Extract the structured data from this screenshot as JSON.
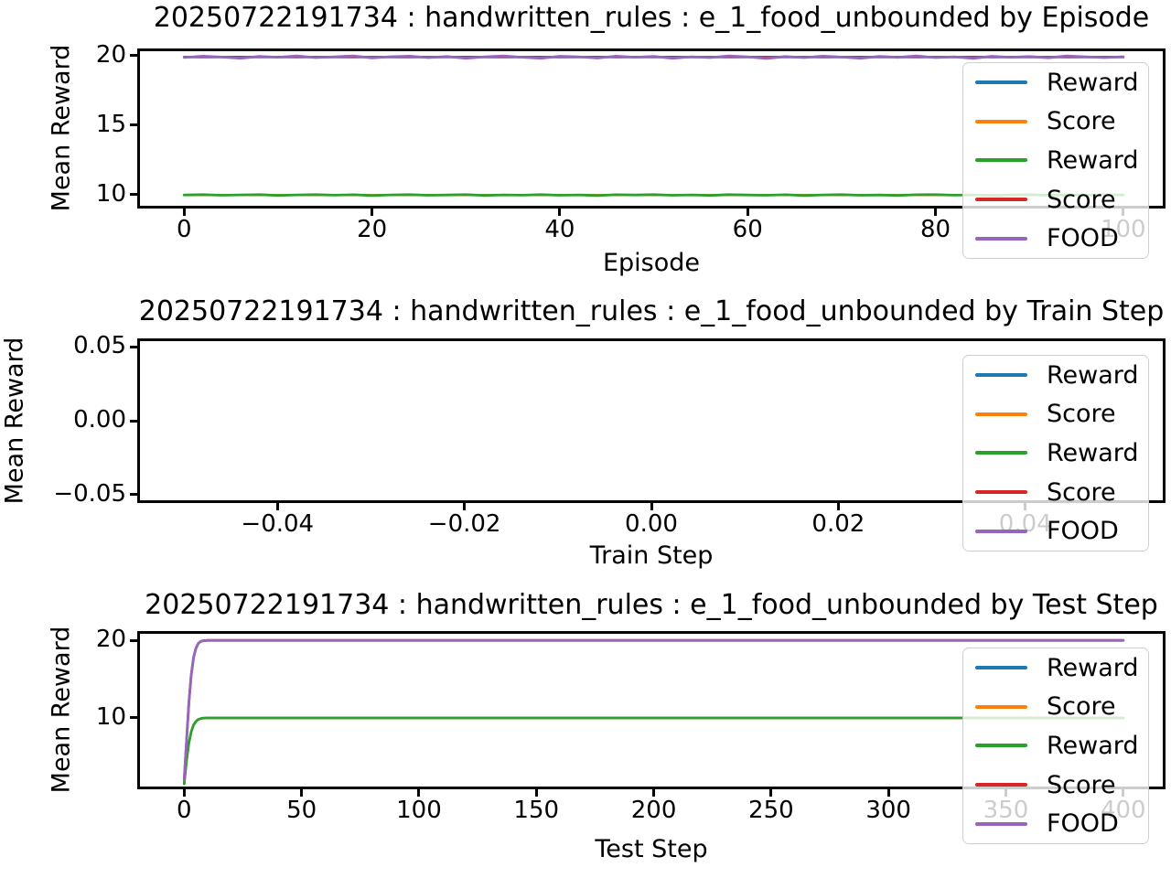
{
  "chart_data": [
    {
      "type": "line",
      "title": "20250722191734 : handwritten_rules : e_1_food_unbounded by Episode",
      "xlabel": "Episode",
      "ylabel": "Mean Reward",
      "xlim": [
        -5,
        104.5
      ],
      "ylim": [
        9.0,
        20.5
      ],
      "grid": false,
      "legend_position": "upper right",
      "xticks": [
        {
          "v": 0,
          "label": "0"
        },
        {
          "v": 20,
          "label": "20"
        },
        {
          "v": 40,
          "label": "40"
        },
        {
          "v": 60,
          "label": "60"
        },
        {
          "v": 80,
          "label": "80"
        },
        {
          "v": 100,
          "label": "100"
        }
      ],
      "yticks": [
        {
          "v": 10,
          "label": "10"
        },
        {
          "v": 15,
          "label": "15"
        },
        {
          "v": 20,
          "label": "20"
        }
      ],
      "legend": [
        {
          "label": "Reward",
          "color": "#1f77b4"
        },
        {
          "label": "Score",
          "color": "#ff7f0e"
        },
        {
          "label": "Reward",
          "color": "#2ca02c"
        },
        {
          "label": "Score",
          "color": "#d62728"
        },
        {
          "label": "FOOD",
          "color": "#9467bd"
        }
      ],
      "series": [
        {
          "name": "Reward",
          "color": "#1f77b4",
          "lw": 2.5,
          "x": [
            0,
            100
          ],
          "values": [
            9.97,
            9.97
          ]
        },
        {
          "name": "Score",
          "color": "#ff7f0e",
          "lw": 2.5,
          "x": [
            0,
            100
          ],
          "values": [
            9.97,
            9.97
          ]
        },
        {
          "name": "Reward",
          "color": "#2ca02c",
          "lw": 2.8,
          "x": [
            0,
            2,
            4,
            6,
            8,
            10,
            12,
            14,
            16,
            18,
            20,
            22,
            24,
            26,
            28,
            30,
            32,
            34,
            36,
            38,
            40,
            42,
            44,
            46,
            48,
            50,
            52,
            54,
            56,
            58,
            60,
            62,
            64,
            66,
            68,
            70,
            72,
            74,
            76,
            78,
            80,
            82,
            84,
            86,
            88,
            90,
            92,
            94,
            96,
            98,
            100
          ],
          "values": [
            9.97,
            10.0,
            9.95,
            9.98,
            10.0,
            9.94,
            9.98,
            10.0,
            9.96,
            9.99,
            9.93,
            9.98,
            10.0,
            9.95,
            9.97,
            10.0,
            9.94,
            9.98,
            9.96,
            10.0,
            9.95,
            9.98,
            9.93,
            9.99,
            9.97,
            10.0,
            9.95,
            9.98,
            9.94,
            10.0,
            9.97,
            9.95,
            9.99,
            9.93,
            9.98,
            10.0,
            9.95,
            9.97,
            9.94,
            9.99,
            10.0,
            9.96,
            9.98,
            9.93,
            9.97,
            10.0,
            9.95,
            9.98,
            9.96,
            9.99,
            9.97
          ]
        },
        {
          "name": "Score",
          "color": "#d62728",
          "lw": 2.8,
          "x": [
            0,
            100
          ],
          "values": [
            19.88,
            19.88
          ]
        },
        {
          "name": "FOOD",
          "color": "#9467bd",
          "lw": 2.8,
          "x": [
            0,
            2,
            4,
            6,
            8,
            10,
            12,
            14,
            16,
            18,
            20,
            22,
            24,
            26,
            28,
            30,
            32,
            34,
            36,
            38,
            40,
            42,
            44,
            46,
            48,
            50,
            52,
            54,
            56,
            58,
            60,
            62,
            64,
            66,
            68,
            70,
            72,
            74,
            76,
            78,
            80,
            82,
            84,
            86,
            88,
            90,
            92,
            94,
            96,
            98,
            100
          ],
          "values": [
            19.85,
            19.95,
            19.88,
            19.8,
            19.93,
            19.87,
            19.96,
            19.84,
            19.9,
            19.97,
            19.82,
            19.91,
            19.95,
            19.84,
            19.92,
            19.8,
            19.9,
            19.96,
            19.87,
            19.8,
            19.94,
            19.9,
            19.81,
            19.95,
            19.87,
            19.93,
            19.8,
            19.9,
            19.84,
            19.96,
            19.9,
            19.78,
            19.92,
            19.84,
            19.95,
            19.88,
            19.8,
            19.93,
            19.86,
            19.96,
            19.84,
            19.9,
            19.79,
            19.94,
            19.87,
            19.92,
            19.83,
            19.96,
            19.9,
            19.84,
            19.91
          ]
        }
      ]
    },
    {
      "type": "line",
      "title": "20250722191734 : handwritten_rules : e_1_food_unbounded by Train Step",
      "xlabel": "Train Step",
      "ylabel": "Mean Reward",
      "xlim": [
        -0.055,
        0.055
      ],
      "ylim": [
        -0.0556,
        0.0556
      ],
      "grid": false,
      "legend_position": "upper right",
      "xticks": [
        {
          "v": -0.04,
          "label": "−0.04"
        },
        {
          "v": -0.02,
          "label": "−0.02"
        },
        {
          "v": 0.0,
          "label": "0.00"
        },
        {
          "v": 0.02,
          "label": "0.02"
        },
        {
          "v": 0.04,
          "label": "0.04"
        }
      ],
      "yticks": [
        {
          "v": -0.05,
          "label": "−0.05"
        },
        {
          "v": 0.0,
          "label": "0.00"
        },
        {
          "v": 0.05,
          "label": "0.05"
        }
      ],
      "legend": [
        {
          "label": "Reward",
          "color": "#1f77b4"
        },
        {
          "label": "Score",
          "color": "#ff7f0e"
        },
        {
          "label": "Reward",
          "color": "#2ca02c"
        },
        {
          "label": "Score",
          "color": "#d62728"
        },
        {
          "label": "FOOD",
          "color": "#9467bd"
        }
      ],
      "series": [
        {
          "name": "Reward",
          "color": "#1f77b4",
          "lw": 2.5,
          "x": [],
          "values": []
        },
        {
          "name": "Score",
          "color": "#ff7f0e",
          "lw": 2.5,
          "x": [],
          "values": []
        },
        {
          "name": "Reward",
          "color": "#2ca02c",
          "lw": 2.5,
          "x": [],
          "values": []
        },
        {
          "name": "Score",
          "color": "#d62728",
          "lw": 2.5,
          "x": [],
          "values": []
        },
        {
          "name": "FOOD",
          "color": "#9467bd",
          "lw": 2.5,
          "x": [],
          "values": []
        }
      ]
    },
    {
      "type": "line",
      "title": "20250722191734 : handwritten_rules : e_1_food_unbounded by Test Step",
      "xlabel": "Test Step",
      "ylabel": "Mean Reward",
      "xlim": [
        -20,
        418
      ],
      "ylim": [
        0.8,
        21.2
      ],
      "grid": false,
      "legend_position": "upper right",
      "xticks": [
        {
          "v": 0,
          "label": "0"
        },
        {
          "v": 50,
          "label": "50"
        },
        {
          "v": 100,
          "label": "100"
        },
        {
          "v": 150,
          "label": "150"
        },
        {
          "v": 200,
          "label": "200"
        },
        {
          "v": 250,
          "label": "250"
        },
        {
          "v": 300,
          "label": "300"
        },
        {
          "v": 350,
          "label": "350"
        },
        {
          "v": 400,
          "label": "400"
        }
      ],
      "yticks": [
        {
          "v": 10,
          "label": "10"
        },
        {
          "v": 20,
          "label": "20"
        }
      ],
      "legend": [
        {
          "label": "Reward",
          "color": "#1f77b4"
        },
        {
          "label": "Score",
          "color": "#ff7f0e"
        },
        {
          "label": "Reward",
          "color": "#2ca02c"
        },
        {
          "label": "Score",
          "color": "#d62728"
        },
        {
          "label": "FOOD",
          "color": "#9467bd"
        }
      ],
      "series": [
        {
          "name": "Reward",
          "color": "#1f77b4",
          "lw": 2.5,
          "x": [
            0,
            1,
            2,
            3,
            4,
            5,
            6,
            7,
            8,
            10,
            15,
            20,
            30,
            50,
            100,
            150,
            200,
            250,
            300,
            350,
            400
          ],
          "values": [
            1.5,
            4.5,
            6.8,
            8.2,
            9.1,
            9.55,
            9.8,
            9.92,
            9.97,
            10,
            10,
            10,
            10,
            10,
            10,
            10,
            10,
            10,
            10,
            10,
            10
          ]
        },
        {
          "name": "Score",
          "color": "#ff7f0e",
          "lw": 2.5,
          "x": [
            0,
            1,
            2,
            3,
            4,
            5,
            6,
            7,
            8,
            10,
            15,
            20,
            30,
            50,
            100,
            150,
            200,
            250,
            300,
            350,
            400
          ],
          "values": [
            1.5,
            4.5,
            6.8,
            8.2,
            9.1,
            9.55,
            9.8,
            9.92,
            9.97,
            10,
            10,
            10,
            10,
            10,
            10,
            10,
            10,
            10,
            10,
            10,
            10
          ]
        },
        {
          "name": "Reward",
          "color": "#2ca02c",
          "lw": 2.8,
          "x": [
            0,
            1,
            2,
            3,
            4,
            5,
            6,
            7,
            8,
            10,
            15,
            20,
            30,
            50,
            100,
            150,
            200,
            250,
            300,
            350,
            400
          ],
          "values": [
            1.5,
            4.5,
            6.8,
            8.2,
            9.1,
            9.55,
            9.8,
            9.92,
            9.97,
            10,
            10,
            10,
            10,
            10,
            10,
            10,
            10,
            10,
            10,
            10,
            10
          ]
        },
        {
          "name": "Score",
          "color": "#d62728",
          "lw": 2.8,
          "x": [
            0,
            1,
            2,
            3,
            4,
            5,
            6,
            7,
            8,
            10,
            15,
            20,
            30,
            50,
            100,
            150,
            200,
            250,
            300,
            350,
            400
          ],
          "values": [
            2,
            7,
            12,
            15.5,
            17.8,
            19,
            19.6,
            19.85,
            19.95,
            20,
            20,
            20,
            20,
            20,
            20,
            20,
            20,
            20,
            20,
            20,
            20
          ]
        },
        {
          "name": "FOOD",
          "color": "#9467bd",
          "lw": 2.8,
          "x": [
            0,
            1,
            2,
            3,
            4,
            5,
            6,
            7,
            8,
            10,
            15,
            20,
            30,
            50,
            100,
            150,
            200,
            250,
            300,
            350,
            400
          ],
          "values": [
            2,
            7,
            12,
            15.5,
            17.8,
            19,
            19.6,
            19.85,
            19.95,
            20,
            20,
            20,
            20,
            20,
            20,
            20,
            20,
            20,
            20,
            20,
            20
          ]
        }
      ]
    }
  ]
}
